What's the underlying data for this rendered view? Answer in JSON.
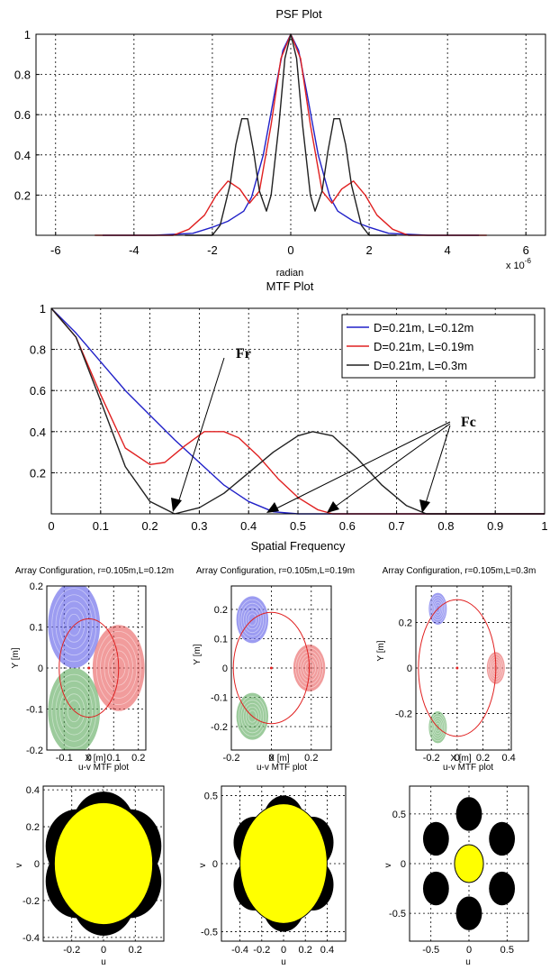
{
  "chart_data": [
    {
      "id": "psf",
      "type": "line",
      "title": "PSF Plot",
      "xlabel": "radian",
      "x_multiplier_label": "x 10",
      "x_multiplier_exp": "-6",
      "xlim": [
        -6.5,
        6.5
      ],
      "ylim": [
        0,
        1
      ],
      "xticks": [
        "-6",
        "-4",
        "-2",
        "0",
        "2",
        "4",
        "6"
      ],
      "xtick_values": [
        -6,
        -4,
        -2,
        0,
        2,
        4,
        6
      ],
      "yticks": [
        "0.2",
        "0.4",
        "0.6",
        "0.8",
        "1"
      ],
      "ytick_values": [
        0.2,
        0.4,
        0.6,
        0.8,
        1
      ],
      "grid": true,
      "series": [
        {
          "color": "#2020c8",
          "x": [
            -4.8,
            -3.5,
            -2.5,
            -2.0,
            -1.6,
            -1.2,
            -1.0,
            -0.7,
            -0.4,
            -0.2,
            0,
            0.2,
            0.4,
            0.7,
            1.0,
            1.2,
            1.6,
            2.0,
            2.5,
            3.5,
            4.8
          ],
          "y": [
            0.0,
            0.0,
            0.01,
            0.04,
            0.07,
            0.12,
            0.19,
            0.4,
            0.72,
            0.92,
            1.0,
            0.92,
            0.72,
            0.4,
            0.19,
            0.12,
            0.07,
            0.04,
            0.01,
            0.0,
            0.0
          ]
        },
        {
          "color": "#e02020",
          "x": [
            -5.0,
            -3.0,
            -2.6,
            -2.2,
            -1.9,
            -1.6,
            -1.3,
            -1.05,
            -0.8,
            -0.5,
            -0.25,
            0,
            0.25,
            0.5,
            0.8,
            1.05,
            1.3,
            1.6,
            1.9,
            2.2,
            2.6,
            3.0,
            5.0
          ],
          "y": [
            0.0,
            0.0,
            0.03,
            0.1,
            0.2,
            0.27,
            0.23,
            0.16,
            0.22,
            0.55,
            0.88,
            1.0,
            0.88,
            0.55,
            0.22,
            0.16,
            0.23,
            0.27,
            0.2,
            0.1,
            0.03,
            0.0,
            0.0
          ]
        },
        {
          "color": "#202020",
          "x": [
            -2.7,
            -2.0,
            -1.8,
            -1.55,
            -1.4,
            -1.25,
            -1.1,
            -0.95,
            -0.8,
            -0.62,
            -0.5,
            -0.3,
            -0.15,
            0,
            0.15,
            0.3,
            0.5,
            0.62,
            0.8,
            0.95,
            1.1,
            1.25,
            1.4,
            1.55,
            1.8,
            2.0,
            2.7
          ],
          "y": [
            0.0,
            0.0,
            0.05,
            0.25,
            0.45,
            0.58,
            0.58,
            0.42,
            0.22,
            0.12,
            0.2,
            0.55,
            0.88,
            1.0,
            0.88,
            0.55,
            0.2,
            0.12,
            0.22,
            0.42,
            0.58,
            0.58,
            0.45,
            0.25,
            0.05,
            0.0,
            0.0
          ]
        }
      ]
    },
    {
      "id": "mtf",
      "type": "line",
      "title": "MTF Plot",
      "xlabel": "Spatial Frequency",
      "xlim": [
        0,
        1
      ],
      "ylim": [
        0,
        1
      ],
      "xticks": [
        "0",
        "0.1",
        "0.2",
        "0.3",
        "0.4",
        "0.5",
        "0.6",
        "0.7",
        "0.8",
        "0.9",
        "1"
      ],
      "xtick_values": [
        0,
        0.1,
        0.2,
        0.3,
        0.4,
        0.5,
        0.6,
        0.7,
        0.8,
        0.9,
        1
      ],
      "yticks": [
        "0.2",
        "0.4",
        "0.6",
        "0.8",
        "1"
      ],
      "ytick_values": [
        0.2,
        0.4,
        0.6,
        0.8,
        1
      ],
      "grid": true,
      "legend_position": "top-right",
      "series": [
        {
          "name": "D=0.21m, L=0.12m",
          "color": "#2020c8",
          "x": [
            0,
            0.05,
            0.1,
            0.15,
            0.2,
            0.25,
            0.3,
            0.35,
            0.4,
            0.45,
            0.5,
            0.6,
            0.7,
            0.8,
            0.9,
            1
          ],
          "y": [
            1.0,
            0.88,
            0.74,
            0.6,
            0.48,
            0.36,
            0.25,
            0.14,
            0.06,
            0.01,
            0.0,
            0.0,
            0.0,
            0.0,
            0.0,
            0.0
          ]
        },
        {
          "name": "D=0.21m, L=0.19m",
          "color": "#e02020",
          "x": [
            0,
            0.05,
            0.1,
            0.15,
            0.2,
            0.23,
            0.27,
            0.31,
            0.35,
            0.38,
            0.42,
            0.46,
            0.5,
            0.54,
            0.57,
            0.6,
            0.7,
            0.8,
            0.9,
            1
          ],
          "y": [
            1.0,
            0.86,
            0.58,
            0.32,
            0.24,
            0.25,
            0.33,
            0.4,
            0.4,
            0.37,
            0.28,
            0.17,
            0.08,
            0.02,
            0.0,
            0.0,
            0.0,
            0.0,
            0.0,
            0.0
          ]
        },
        {
          "name": "D=0.21m, L=0.3m",
          "color": "#202020",
          "x": [
            0,
            0.05,
            0.1,
            0.15,
            0.2,
            0.25,
            0.3,
            0.35,
            0.4,
            0.45,
            0.5,
            0.53,
            0.57,
            0.62,
            0.67,
            0.72,
            0.76,
            0.8,
            0.9,
            1
          ],
          "y": [
            1.0,
            0.86,
            0.55,
            0.23,
            0.06,
            0.0,
            0.03,
            0.1,
            0.2,
            0.3,
            0.38,
            0.4,
            0.38,
            0.27,
            0.14,
            0.04,
            0.0,
            0.0,
            0.0,
            0.0
          ]
        }
      ],
      "annotations": [
        {
          "label": "Fr",
          "points_to": [
            [
              0.25,
              0.0
            ]
          ]
        },
        {
          "label": "Fc",
          "points_to": [
            [
              0.44,
              0.0
            ],
            [
              0.57,
              0.0
            ],
            [
              0.76,
              0.0
            ]
          ]
        }
      ]
    },
    {
      "id": "array1",
      "type": "scatter",
      "title": "Array Configuration, r=0.105m,L=0.12m",
      "xlabel": "X [m]",
      "ylabel": "Y [m]",
      "xlim": [
        -0.17,
        0.23
      ],
      "ylim": [
        -0.2,
        0.2
      ],
      "xticks": [
        "-0.1",
        "0",
        "0.1",
        "0.2"
      ],
      "xtick_values": [
        -0.1,
        0,
        0.1,
        0.2
      ],
      "yticks": [
        "-0.2",
        "-0.1",
        "0",
        "0.1",
        "0.2"
      ],
      "ytick_values": [
        -0.2,
        -0.1,
        0,
        0.1,
        0.2
      ],
      "ring_radius": 0.12,
      "apertures": [
        {
          "x": -0.06,
          "y": 0.105,
          "r": 0.105,
          "color": "#4a4ae6"
        },
        {
          "x": 0.12,
          "y": 0.0,
          "r": 0.105,
          "color": "#e64a4a"
        },
        {
          "x": -0.06,
          "y": -0.105,
          "r": 0.105,
          "color": "#4aa04a"
        }
      ]
    },
    {
      "id": "array2",
      "type": "scatter",
      "title": "Array Configuration, r=0.105m,L=0.19m",
      "xlabel": "X [m]",
      "ylabel": "Y [m]",
      "xlim": [
        -0.2,
        0.3
      ],
      "ylim": [
        -0.28,
        0.28
      ],
      "xticks": [
        "-0.2",
        "0",
        "0.2"
      ],
      "xtick_values": [
        -0.2,
        0,
        0.2
      ],
      "yticks": [
        "-0.2",
        "-0.1",
        "0",
        "0.1",
        "0.2"
      ],
      "ytick_values": [
        -0.2,
        -0.1,
        0,
        0.1,
        0.2
      ],
      "ring_radius": 0.19,
      "apertures": [
        {
          "x": -0.095,
          "y": 0.165,
          "r": 0.08,
          "color": "#4a4ae6"
        },
        {
          "x": 0.19,
          "y": 0.0,
          "r": 0.08,
          "color": "#e64a4a"
        },
        {
          "x": -0.095,
          "y": -0.165,
          "r": 0.08,
          "color": "#4aa04a"
        }
      ]
    },
    {
      "id": "array3",
      "type": "scatter",
      "title": "Array Configuration, r=0.105m,L=0.3m",
      "xlabel": "X [m]",
      "ylabel": "Y [m]",
      "xlim": [
        -0.32,
        0.42
      ],
      "ylim": [
        -0.36,
        0.36
      ],
      "xticks": [
        "-0.2",
        "0",
        "0.2",
        "0.4"
      ],
      "xtick_values": [
        -0.2,
        0,
        0.2,
        0.4
      ],
      "yticks": [
        "-0.2",
        "0",
        "0.2"
      ],
      "ytick_values": [
        -0.2,
        0,
        0.2
      ],
      "ring_radius": 0.3,
      "apertures": [
        {
          "x": -0.15,
          "y": 0.26,
          "r": 0.07,
          "color": "#4a4ae6"
        },
        {
          "x": 0.3,
          "y": 0.0,
          "r": 0.07,
          "color": "#e64a4a"
        },
        {
          "x": -0.15,
          "y": -0.26,
          "r": 0.07,
          "color": "#4aa04a"
        }
      ]
    },
    {
      "id": "uv1",
      "type": "scatter",
      "title": "u-v MTF plot",
      "xlabel": "u",
      "ylabel": "v",
      "xlim": [
        -0.38,
        0.38
      ],
      "ylim": [
        -0.42,
        0.42
      ],
      "xticks": [
        "-0.2",
        "0",
        "0.2"
      ],
      "xtick_values": [
        -0.2,
        0,
        0.2
      ],
      "yticks": [
        "-0.4",
        "-0.2",
        "0",
        "0.2",
        "0.4"
      ],
      "ytick_values": [
        -0.4,
        -0.2,
        0,
        0.2,
        0.4
      ],
      "black_r": 0.2,
      "black_ring": 0.19,
      "center": {
        "rx": 0.31,
        "ry": 0.33,
        "color": "#ffff00"
      }
    },
    {
      "id": "uv2",
      "type": "scatter",
      "title": "u-v MTF plot",
      "xlabel": "u",
      "ylabel": "v",
      "xlim": [
        -0.57,
        0.57
      ],
      "ylim": [
        -0.57,
        0.57
      ],
      "xticks": [
        "-0.4",
        "-0.2",
        "0",
        "0.2",
        "0.4"
      ],
      "xtick_values": [
        -0.4,
        -0.2,
        0,
        0.2,
        0.4
      ],
      "yticks": [
        "-0.5",
        "0",
        "0.5"
      ],
      "ytick_values": [
        -0.5,
        0,
        0.5
      ],
      "black_r": 0.19,
      "black_ring": 0.31,
      "center": {
        "rx": 0.4,
        "ry": 0.44,
        "color": "#ffff00"
      }
    },
    {
      "id": "uv3",
      "type": "scatter",
      "title": "u-v MTF plot",
      "xlabel": "u",
      "ylabel": "v",
      "xlim": [
        -0.78,
        0.78
      ],
      "ylim": [
        -0.78,
        0.78
      ],
      "xticks": [
        "-0.5",
        "0",
        "0.5"
      ],
      "xtick_values": [
        -0.5,
        0,
        0.5
      ],
      "yticks": [
        "-0.5",
        "0",
        "0.5"
      ],
      "ytick_values": [
        -0.5,
        0,
        0.5
      ],
      "black_r": 0.17,
      "black_ring": 0.5,
      "center": {
        "rx": 0.19,
        "ry": 0.19,
        "color": "#ffff00"
      }
    }
  ]
}
